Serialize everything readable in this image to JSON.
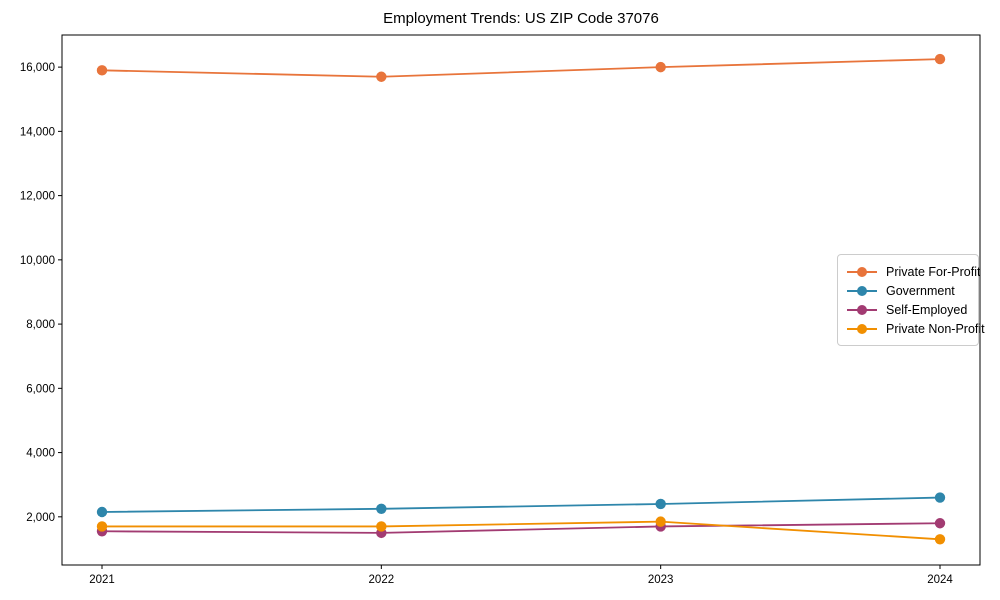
{
  "chart_data": {
    "type": "line",
    "title": "Employment Trends: US ZIP Code 37076",
    "categories": [
      "2021",
      "2022",
      "2023",
      "2024"
    ],
    "series": [
      {
        "name": "Private For-Profit",
        "color": "#e8743b",
        "values": [
          15900,
          15700,
          16000,
          16250
        ]
      },
      {
        "name": "Government",
        "color": "#2e86ab",
        "values": [
          2150,
          2250,
          2400,
          2600
        ]
      },
      {
        "name": "Self-Employed",
        "color": "#a23b72",
        "values": [
          1550,
          1500,
          1700,
          1800
        ]
      },
      {
        "name": "Private Non-Profit",
        "color": "#f18f01",
        "values": [
          1700,
          1700,
          1850,
          1300
        ]
      }
    ],
    "xlabel": "",
    "ylabel": "",
    "ylim": [
      500,
      17000
    ],
    "yticks": {
      "values": [
        2000,
        4000,
        6000,
        8000,
        10000,
        12000,
        14000,
        16000
      ],
      "labels": [
        "2,000",
        "4,000",
        "6,000",
        "8,000",
        "10,000",
        "12,000",
        "14,000",
        "16,000"
      ]
    },
    "grid": false,
    "legend_position": "center right",
    "marker": "circle",
    "axis_color": "#000000",
    "background": "#ffffff"
  }
}
